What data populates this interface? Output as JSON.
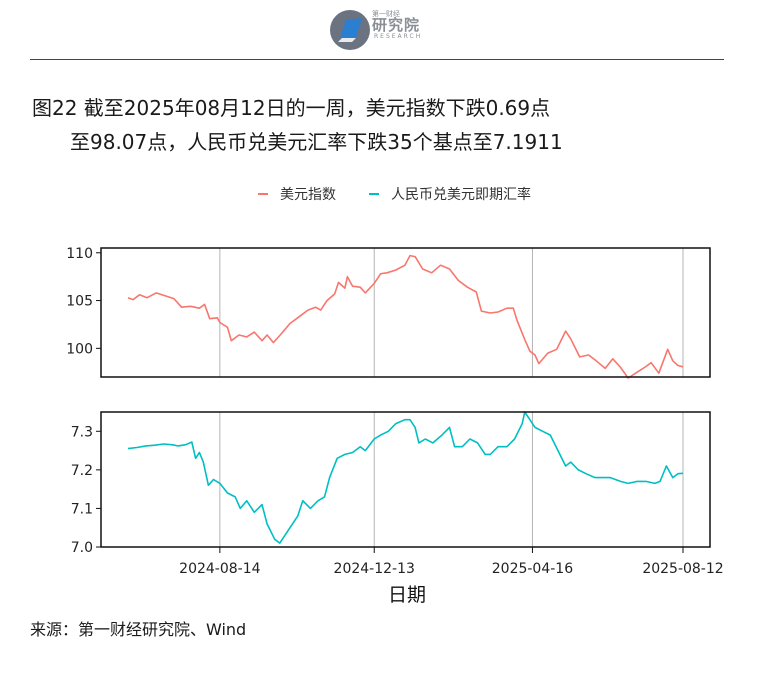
{
  "header": {
    "logo_small": "第一财经",
    "logo_cn": "研究院",
    "logo_en": "RESEARCH"
  },
  "title": {
    "line1": "图22  截至2025年08月12日的一周，美元指数下跌0.69点",
    "line2": "至98.07点，人民币兑美元汇率下跌35个基点至7.1911"
  },
  "legend": {
    "items": [
      {
        "label": "美元指数",
        "color": "#F8766D"
      },
      {
        "label": "人民币兑美元即期汇率",
        "color": "#00BFC4"
      }
    ]
  },
  "source": "来源：第一财经研究院、Wind",
  "chart_data": {
    "type": "line",
    "xlabel": "日期",
    "x_ticks": [
      "2024-08-14",
      "2024-12-13",
      "2025-04-16",
      "2025-08-12"
    ],
    "x_range": [
      "2024-06-03",
      "2025-08-12"
    ],
    "grid": "vertical lines at x ticks",
    "panels": [
      {
        "name": "美元指数",
        "color": "#F8766D",
        "ylim": [
          97,
          110.5
        ],
        "y_ticks": [
          100,
          105,
          110
        ],
        "points": [
          [
            "2024-06-03",
            105.3
          ],
          [
            "2024-06-07",
            105.1
          ],
          [
            "2024-06-12",
            105.6
          ],
          [
            "2024-06-18",
            105.3
          ],
          [
            "2024-06-25",
            105.8
          ],
          [
            "2024-07-02",
            105.5
          ],
          [
            "2024-07-09",
            105.2
          ],
          [
            "2024-07-15",
            104.3
          ],
          [
            "2024-07-22",
            104.4
          ],
          [
            "2024-07-29",
            104.2
          ],
          [
            "2024-08-02",
            104.6
          ],
          [
            "2024-08-06",
            103.1
          ],
          [
            "2024-08-12",
            103.2
          ],
          [
            "2024-08-14",
            102.7
          ],
          [
            "2024-08-20",
            102.2
          ],
          [
            "2024-08-23",
            100.8
          ],
          [
            "2024-08-29",
            101.4
          ],
          [
            "2024-09-04",
            101.2
          ],
          [
            "2024-09-10",
            101.7
          ],
          [
            "2024-09-16",
            100.8
          ],
          [
            "2024-09-20",
            101.4
          ],
          [
            "2024-09-25",
            100.6
          ],
          [
            "2024-10-01",
            101.5
          ],
          [
            "2024-10-08",
            102.6
          ],
          [
            "2024-10-15",
            103.3
          ],
          [
            "2024-10-22",
            104.0
          ],
          [
            "2024-10-28",
            104.3
          ],
          [
            "2024-11-01",
            104.0
          ],
          [
            "2024-11-06",
            105.0
          ],
          [
            "2024-11-12",
            105.7
          ],
          [
            "2024-11-15",
            106.9
          ],
          [
            "2024-11-20",
            106.3
          ],
          [
            "2024-11-22",
            107.5
          ],
          [
            "2024-11-26",
            106.5
          ],
          [
            "2024-12-02",
            106.4
          ],
          [
            "2024-12-06",
            105.8
          ],
          [
            "2024-12-13",
            106.8
          ],
          [
            "2024-12-18",
            107.8
          ],
          [
            "2024-12-23",
            107.9
          ],
          [
            "2024-12-30",
            108.2
          ],
          [
            "2025-01-06",
            108.7
          ],
          [
            "2025-01-10",
            109.7
          ],
          [
            "2025-01-14",
            109.6
          ],
          [
            "2025-01-20",
            108.3
          ],
          [
            "2025-01-27",
            107.9
          ],
          [
            "2025-02-03",
            108.7
          ],
          [
            "2025-02-10",
            108.3
          ],
          [
            "2025-02-17",
            107.1
          ],
          [
            "2025-02-24",
            106.4
          ],
          [
            "2025-03-03",
            105.9
          ],
          [
            "2025-03-07",
            103.9
          ],
          [
            "2025-03-14",
            103.7
          ],
          [
            "2025-03-20",
            103.8
          ],
          [
            "2025-03-27",
            104.2
          ],
          [
            "2025-04-01",
            104.2
          ],
          [
            "2025-04-04",
            102.9
          ],
          [
            "2025-04-10",
            100.9
          ],
          [
            "2025-04-14",
            99.7
          ],
          [
            "2025-04-18",
            99.3
          ],
          [
            "2025-04-21",
            98.4
          ],
          [
            "2025-04-28",
            99.5
          ],
          [
            "2025-05-05",
            99.9
          ],
          [
            "2025-05-12",
            101.8
          ],
          [
            "2025-05-16",
            101.0
          ],
          [
            "2025-05-23",
            99.1
          ],
          [
            "2025-05-30",
            99.3
          ],
          [
            "2025-06-05",
            98.7
          ],
          [
            "2025-06-12",
            97.9
          ],
          [
            "2025-06-18",
            98.9
          ],
          [
            "2025-06-24",
            98.0
          ],
          [
            "2025-06-30",
            96.9
          ],
          [
            "2025-07-07",
            97.5
          ],
          [
            "2025-07-14",
            98.1
          ],
          [
            "2025-07-18",
            98.5
          ],
          [
            "2025-07-24",
            97.4
          ],
          [
            "2025-07-31",
            99.9
          ],
          [
            "2025-08-04",
            98.7
          ],
          [
            "2025-08-08",
            98.2
          ],
          [
            "2025-08-12",
            98.07
          ]
        ]
      },
      {
        "name": "人民币兑美元即期汇率",
        "color": "#00BFC4",
        "ylim": [
          7.0,
          7.35
        ],
        "y_ticks": [
          7.0,
          7.1,
          7.2,
          7.3
        ],
        "points": [
          [
            "2024-06-03",
            7.255
          ],
          [
            "2024-06-10",
            7.258
          ],
          [
            "2024-06-17",
            7.262
          ],
          [
            "2024-06-24",
            7.264
          ],
          [
            "2024-07-01",
            7.267
          ],
          [
            "2024-07-08",
            7.265
          ],
          [
            "2024-07-12",
            7.262
          ],
          [
            "2024-07-18",
            7.265
          ],
          [
            "2024-07-23",
            7.272
          ],
          [
            "2024-07-26",
            7.23
          ],
          [
            "2024-07-29",
            7.245
          ],
          [
            "2024-08-01",
            7.22
          ],
          [
            "2024-08-05",
            7.16
          ],
          [
            "2024-08-09",
            7.175
          ],
          [
            "2024-08-14",
            7.165
          ],
          [
            "2024-08-20",
            7.14
          ],
          [
            "2024-08-26",
            7.13
          ],
          [
            "2024-08-30",
            7.1
          ],
          [
            "2024-09-04",
            7.12
          ],
          [
            "2024-09-10",
            7.09
          ],
          [
            "2024-09-16",
            7.11
          ],
          [
            "2024-09-20",
            7.06
          ],
          [
            "2024-09-26",
            7.02
          ],
          [
            "2024-09-30",
            7.01
          ],
          [
            "2024-10-08",
            7.05
          ],
          [
            "2024-10-14",
            7.08
          ],
          [
            "2024-10-18",
            7.12
          ],
          [
            "2024-10-24",
            7.1
          ],
          [
            "2024-10-30",
            7.12
          ],
          [
            "2024-11-04",
            7.13
          ],
          [
            "2024-11-08",
            7.18
          ],
          [
            "2024-11-14",
            7.23
          ],
          [
            "2024-11-20",
            7.24
          ],
          [
            "2024-11-26",
            7.245
          ],
          [
            "2024-12-02",
            7.26
          ],
          [
            "2024-12-06",
            7.25
          ],
          [
            "2024-12-13",
            7.28
          ],
          [
            "2024-12-18",
            7.29
          ],
          [
            "2024-12-24",
            7.3
          ],
          [
            "2024-12-30",
            7.32
          ],
          [
            "2025-01-06",
            7.33
          ],
          [
            "2025-01-10",
            7.33
          ],
          [
            "2025-01-14",
            7.31
          ],
          [
            "2025-01-17",
            7.27
          ],
          [
            "2025-01-22",
            7.28
          ],
          [
            "2025-01-28",
            7.27
          ],
          [
            "2025-02-04",
            7.29
          ],
          [
            "2025-02-10",
            7.31
          ],
          [
            "2025-02-14",
            7.26
          ],
          [
            "2025-02-20",
            7.26
          ],
          [
            "2025-02-26",
            7.28
          ],
          [
            "2025-03-04",
            7.27
          ],
          [
            "2025-03-10",
            7.24
          ],
          [
            "2025-03-14",
            7.24
          ],
          [
            "2025-03-20",
            7.26
          ],
          [
            "2025-03-27",
            7.26
          ],
          [
            "2025-04-02",
            7.28
          ],
          [
            "2025-04-08",
            7.32
          ],
          [
            "2025-04-10",
            7.35
          ],
          [
            "2025-04-14",
            7.33
          ],
          [
            "2025-04-18",
            7.31
          ],
          [
            "2025-04-24",
            7.3
          ],
          [
            "2025-04-30",
            7.29
          ],
          [
            "2025-05-06",
            7.25
          ],
          [
            "2025-05-12",
            7.21
          ],
          [
            "2025-05-16",
            7.22
          ],
          [
            "2025-05-22",
            7.2
          ],
          [
            "2025-05-28",
            7.19
          ],
          [
            "2025-06-04",
            7.18
          ],
          [
            "2025-06-10",
            7.18
          ],
          [
            "2025-06-16",
            7.18
          ],
          [
            "2025-06-24",
            7.17
          ],
          [
            "2025-06-30",
            7.165
          ],
          [
            "2025-07-07",
            7.17
          ],
          [
            "2025-07-14",
            7.17
          ],
          [
            "2025-07-21",
            7.165
          ],
          [
            "2025-07-25",
            7.17
          ],
          [
            "2025-07-30",
            7.21
          ],
          [
            "2025-08-04",
            7.18
          ],
          [
            "2025-08-08",
            7.19
          ],
          [
            "2025-08-12",
            7.1911
          ]
        ]
      }
    ]
  }
}
